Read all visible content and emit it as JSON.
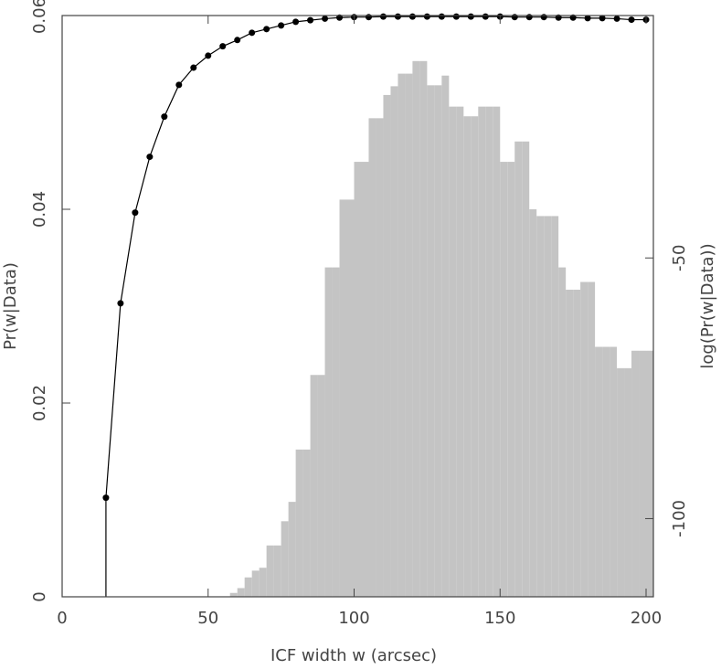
{
  "chart_data": {
    "type": "histogram",
    "x_label": "ICF width w (arcsec)",
    "y_label": "Pr(w|Data)",
    "y2_label": "log(Pr(w|Data))",
    "bins": [
      57.5,
      60,
      62.5,
      65,
      67.5,
      70,
      72.5,
      75,
      77.5,
      80,
      82.5,
      85,
      87.5,
      90,
      92.5,
      95,
      97.5,
      100,
      102.5,
      105,
      107.5,
      110,
      112.5,
      115,
      117.5,
      120,
      122.5,
      125,
      127.5,
      130,
      132.5,
      135,
      137.5,
      140,
      142.5,
      145,
      147.5,
      150,
      152.5,
      155,
      157.5,
      160,
      162.5,
      165,
      167.5,
      170,
      172.5,
      175,
      177.5,
      180,
      182.5,
      185,
      187.5,
      190,
      192.5,
      195,
      197.5,
      200,
      202.5
    ],
    "values": [
      0.0004,
      0.0009,
      0.002,
      0.0027,
      0.003,
      0.0053,
      0.0053,
      0.0078,
      0.0098,
      0.0152,
      0.0152,
      0.0229,
      0.0229,
      0.034,
      0.034,
      0.041,
      0.041,
      0.0449,
      0.0449,
      0.0494,
      0.0494,
      0.0518,
      0.0527,
      0.054,
      0.054,
      0.0553,
      0.0553,
      0.0528,
      0.0528,
      0.0538,
      0.0506,
      0.0506,
      0.0496,
      0.0496,
      0.0506,
      0.0506,
      0.0506,
      0.0449,
      0.0449,
      0.047,
      0.047,
      0.04,
      0.0393,
      0.0393,
      0.0393,
      0.034,
      0.0317,
      0.0317,
      0.0325,
      0.0325,
      0.0258,
      0.0258,
      0.0258,
      0.0236,
      0.0236,
      0.0254,
      0.0254,
      0.0254
    ],
    "color": "#c4c4c4",
    "xlim": [
      0,
      202.5
    ],
    "xticks": [
      0,
      50,
      100,
      150,
      200
    ],
    "ylim": [
      0,
      0.06
    ],
    "yticks": [
      0,
      0.02,
      0.04,
      0.06
    ],
    "y2lim": [
      -115,
      -3.5
    ],
    "y2ticks": [
      -50,
      -100
    ],
    "overlay": {
      "type": "line",
      "axis": "y2",
      "color": "#000000",
      "x": [
        15,
        20,
        25,
        30,
        35,
        40,
        45,
        50,
        55,
        60,
        65,
        70,
        75,
        80,
        85,
        90,
        95,
        100,
        105,
        110,
        115,
        120,
        125,
        130,
        135,
        140,
        145,
        150,
        155,
        160,
        165,
        170,
        175,
        180,
        185,
        190,
        195,
        200
      ],
      "values": [
        -96,
        -58.7,
        -41.3,
        -30.6,
        -22.9,
        -16.8,
        -13.5,
        -11.2,
        -9.4,
        -8.2,
        -6.8,
        -6.1,
        -5.4,
        -4.7,
        -4.4,
        -4.1,
        -3.9,
        -3.8,
        -3.8,
        -3.7,
        -3.7,
        -3.7,
        -3.7,
        -3.7,
        -3.7,
        -3.7,
        -3.7,
        -3.7,
        -3.8,
        -3.8,
        -3.8,
        -3.9,
        -3.9,
        -4.0,
        -4.0,
        -4.1,
        -4.3,
        -4.3
      ]
    }
  }
}
